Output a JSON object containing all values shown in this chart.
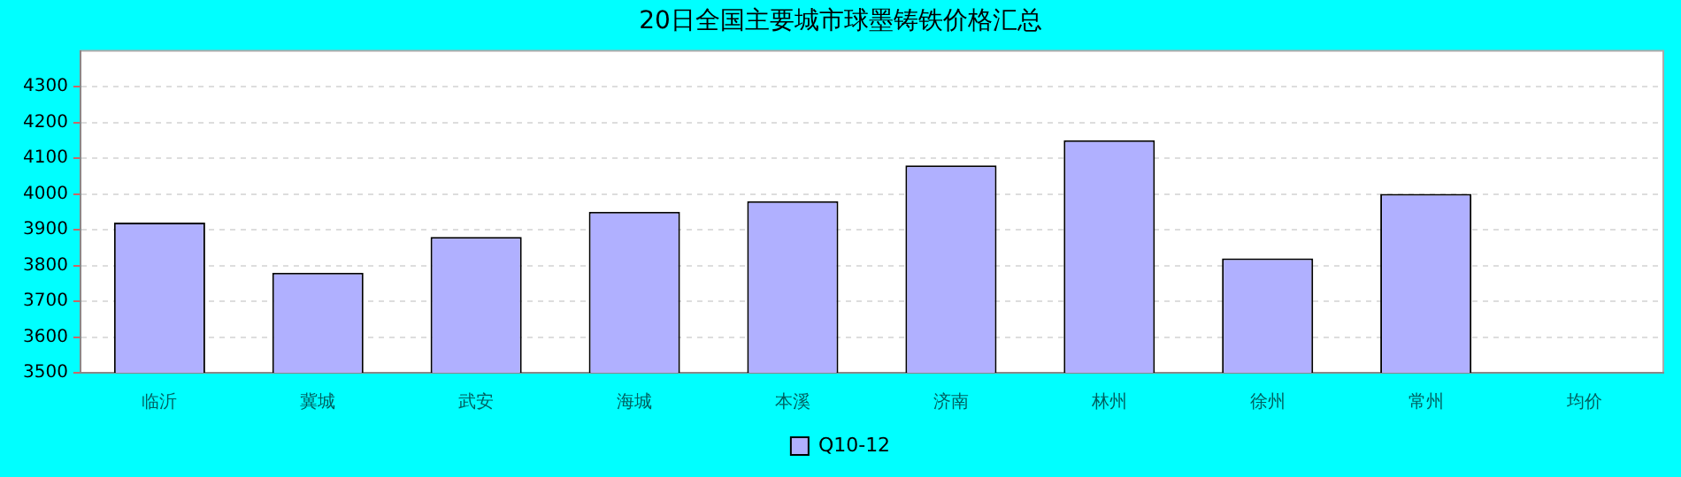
{
  "chart_data": {
    "type": "bar",
    "title": "20日全国主要城市球墨铸铁价格汇总",
    "categories": [
      "临沂",
      "冀城",
      "武安",
      "海城",
      "本溪",
      "济南",
      "林州",
      "徐州",
      "常州",
      "均价"
    ],
    "series": [
      {
        "name": "Q10-12",
        "color": "#b0b0ff",
        "values": [
          3920,
          3780,
          3880,
          3950,
          3980,
          4080,
          4150,
          3820,
          4000,
          null
        ]
      }
    ],
    "ylim": [
      3500,
      4400
    ],
    "yticks": [
      3500,
      3600,
      3700,
      3800,
      3900,
      4000,
      4100,
      4200,
      4300
    ],
    "grid": "y",
    "legend": "bottom"
  }
}
